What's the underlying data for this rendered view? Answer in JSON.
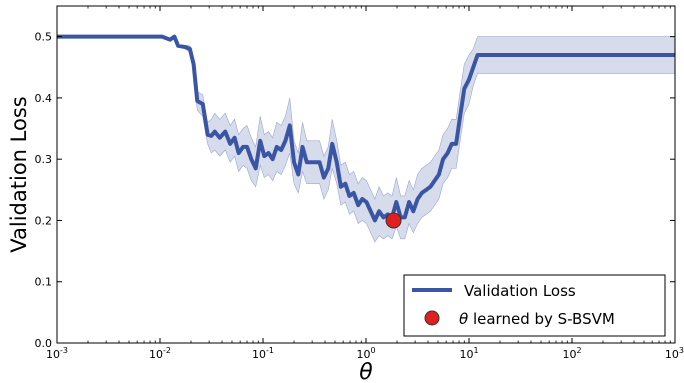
{
  "chart_data": {
    "type": "line",
    "xscale": "log",
    "xlim": [
      0.001,
      1000
    ],
    "ylim": [
      0.0,
      0.55
    ],
    "xlabel": "θ",
    "ylabel": "Validation Loss",
    "grid": false,
    "legend_position": "bottom-right",
    "x_ticks": [
      {
        "value": 0.001,
        "base": "10",
        "exp": "-3"
      },
      {
        "value": 0.01,
        "base": "10",
        "exp": "-2"
      },
      {
        "value": 0.1,
        "base": "10",
        "exp": "-1"
      },
      {
        "value": 1,
        "base": "10",
        "exp": "0"
      },
      {
        "value": 10,
        "base": "10",
        "exp": "1"
      },
      {
        "value": 100,
        "base": "10",
        "exp": "2"
      },
      {
        "value": 1000,
        "base": "10",
        "exp": "3"
      }
    ],
    "y_ticks": [
      "0.0",
      "0.1",
      "0.2",
      "0.3",
      "0.4",
      "0.5"
    ],
    "series": [
      {
        "name": "Validation Loss",
        "color": "#3a55a4",
        "band_color": "#c9d0e6",
        "x": [
          0.001,
          0.002,
          0.005,
          0.008,
          0.0105,
          0.0125,
          0.0138,
          0.015,
          0.0175,
          0.0195,
          0.0212,
          0.023,
          0.026,
          0.029,
          0.0315,
          0.034,
          0.038,
          0.043,
          0.048,
          0.053,
          0.058,
          0.064,
          0.07,
          0.077,
          0.085,
          0.094,
          0.103,
          0.113,
          0.124,
          0.136,
          0.15,
          0.165,
          0.182,
          0.2,
          0.22,
          0.242,
          0.266,
          0.293,
          0.322,
          0.354,
          0.39,
          0.43,
          0.47,
          0.52,
          0.57,
          0.63,
          0.69,
          0.76,
          0.84,
          0.92,
          1.01,
          1.11,
          1.22,
          1.34,
          1.48,
          1.63,
          1.79,
          1.97,
          2.17,
          2.38,
          2.62,
          2.88,
          3.17,
          3.49,
          3.84,
          4.22,
          4.64,
          5.1,
          5.6,
          6.2,
          6.8,
          7.5,
          8.2,
          9.0,
          10.0,
          11.0,
          12.1,
          13.3,
          14.6,
          16.0,
          17.5,
          19.0,
          30,
          100,
          1000
        ],
        "values": [
          0.5,
          0.5,
          0.5,
          0.5,
          0.5,
          0.495,
          0.5,
          0.485,
          0.483,
          0.48,
          0.455,
          0.395,
          0.39,
          0.34,
          0.338,
          0.345,
          0.335,
          0.345,
          0.325,
          0.335,
          0.31,
          0.32,
          0.32,
          0.3,
          0.285,
          0.33,
          0.305,
          0.31,
          0.3,
          0.32,
          0.315,
          0.33,
          0.355,
          0.295,
          0.275,
          0.32,
          0.295,
          0.295,
          0.295,
          0.295,
          0.27,
          0.285,
          0.325,
          0.295,
          0.255,
          0.26,
          0.24,
          0.245,
          0.225,
          0.235,
          0.23,
          0.215,
          0.2,
          0.215,
          0.205,
          0.21,
          0.205,
          0.23,
          0.205,
          0.205,
          0.23,
          0.215,
          0.235,
          0.245,
          0.25,
          0.255,
          0.265,
          0.275,
          0.3,
          0.31,
          0.325,
          0.325,
          0.37,
          0.415,
          0.43,
          0.45,
          0.47,
          0.47,
          0.47,
          0.47,
          0.47,
          0.47,
          0.47,
          0.47,
          0.47
        ],
        "lower": [
          0.5,
          0.5,
          0.5,
          0.5,
          0.5,
          0.495,
          0.5,
          0.485,
          0.48,
          0.475,
          0.445,
          0.38,
          0.37,
          0.325,
          0.31,
          0.315,
          0.305,
          0.315,
          0.295,
          0.305,
          0.28,
          0.29,
          0.285,
          0.265,
          0.255,
          0.29,
          0.27,
          0.275,
          0.265,
          0.28,
          0.275,
          0.29,
          0.31,
          0.26,
          0.245,
          0.28,
          0.26,
          0.26,
          0.26,
          0.26,
          0.235,
          0.25,
          0.285,
          0.26,
          0.225,
          0.23,
          0.21,
          0.215,
          0.195,
          0.2,
          0.195,
          0.18,
          0.165,
          0.175,
          0.17,
          0.175,
          0.17,
          0.19,
          0.17,
          0.17,
          0.195,
          0.18,
          0.195,
          0.205,
          0.21,
          0.215,
          0.225,
          0.235,
          0.26,
          0.27,
          0.285,
          0.285,
          0.33,
          0.375,
          0.39,
          0.42,
          0.44,
          0.44,
          0.44,
          0.44,
          0.44,
          0.44,
          0.44,
          0.44,
          0.44
        ],
        "upper": [
          0.5,
          0.5,
          0.5,
          0.5,
          0.5,
          0.495,
          0.5,
          0.485,
          0.486,
          0.485,
          0.465,
          0.41,
          0.405,
          0.36,
          0.365,
          0.375,
          0.365,
          0.375,
          0.355,
          0.365,
          0.34,
          0.35,
          0.355,
          0.335,
          0.32,
          0.37,
          0.34,
          0.345,
          0.335,
          0.36,
          0.355,
          0.37,
          0.4,
          0.33,
          0.31,
          0.36,
          0.33,
          0.33,
          0.33,
          0.33,
          0.305,
          0.32,
          0.365,
          0.33,
          0.29,
          0.295,
          0.275,
          0.28,
          0.26,
          0.27,
          0.265,
          0.25,
          0.235,
          0.255,
          0.24,
          0.245,
          0.24,
          0.27,
          0.24,
          0.24,
          0.265,
          0.25,
          0.275,
          0.285,
          0.29,
          0.295,
          0.305,
          0.315,
          0.34,
          0.35,
          0.365,
          0.365,
          0.41,
          0.455,
          0.47,
          0.48,
          0.5,
          0.5,
          0.5,
          0.5,
          0.5,
          0.5,
          0.5,
          0.5,
          0.5
        ]
      }
    ],
    "marker": {
      "label_symbol": "θ",
      "label_text": "learned by S-BSVM",
      "x": 1.85,
      "y": 0.2,
      "color": "#e02020",
      "edge_color": "#333333"
    },
    "legend": {
      "line_label": "Validation Loss"
    }
  }
}
